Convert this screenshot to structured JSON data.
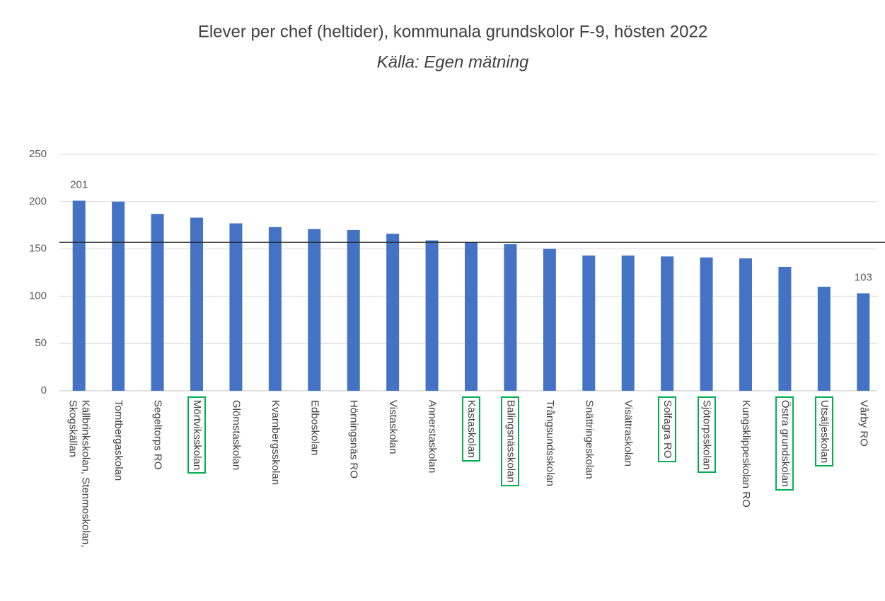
{
  "chart_data": {
    "type": "bar",
    "title": "Elever per chef (heltider), kommunala grundskolor F-9, hösten 2022",
    "subtitle": "Källa: Egen mätning",
    "categories": [
      "Källbrinkskolan, Stenmoskolan, Skogskällan",
      "Tomtbergaskolan",
      "Segeltorps RO",
      "Mörtviksskolan",
      "Glömstaskolan",
      "Kvarnbergsskolan",
      "Edboskolan",
      "Hörningsnäs RO",
      "Vistaskolan",
      "Annerstaskolan",
      "Kästaskolan",
      "Balingsnässkolan",
      "Trångsundsskolan",
      "Snättringeskolan",
      "Visättraskolan",
      "Solfagra RO",
      "Sjötorpsskolan",
      "Kungsklippeskolan RO",
      "Östra grundskolan",
      "Utsäljeskolan",
      "Vårby RO"
    ],
    "values": [
      201,
      200,
      187,
      183,
      177,
      173,
      171,
      170,
      166,
      159,
      157,
      155,
      150,
      143,
      143,
      142,
      141,
      140,
      131,
      110,
      103
    ],
    "value_labels": [
      "201",
      null,
      null,
      null,
      null,
      null,
      null,
      null,
      null,
      null,
      null,
      null,
      null,
      null,
      null,
      null,
      null,
      null,
      null,
      null,
      "103"
    ],
    "highlighted": [
      false,
      false,
      false,
      true,
      false,
      false,
      false,
      false,
      false,
      false,
      true,
      true,
      false,
      false,
      false,
      true,
      true,
      false,
      true,
      true,
      false
    ],
    "highlight_color": "#00b050",
    "color": "#4472c4",
    "reference_line": 157,
    "ylim": [
      0,
      250
    ],
    "yticks": [
      0,
      50,
      100,
      150,
      200,
      250
    ],
    "grid": true
  }
}
